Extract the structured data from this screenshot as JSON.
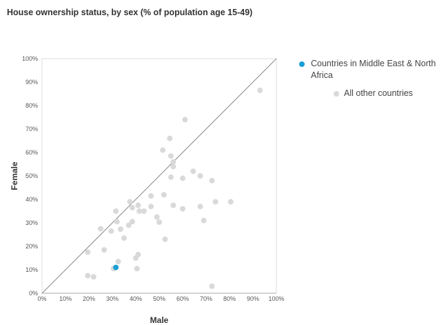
{
  "chart_data": {
    "type": "scatter",
    "title": "House ownership status, by sex (% of population age 15-49)",
    "xlabel": "Male",
    "ylabel": "Female",
    "xlim": [
      0,
      100
    ],
    "ylim": [
      0,
      100
    ],
    "x_ticks": [
      "0%",
      "10%",
      "20%",
      "30%",
      "40%",
      "50%",
      "60%",
      "70%",
      "80%",
      "90%",
      "100%"
    ],
    "y_ticks": [
      "0%",
      "10%",
      "20%",
      "30%",
      "40%",
      "50%",
      "60%",
      "70%",
      "80%",
      "90%",
      "100%"
    ],
    "reference_line": "y = x",
    "grid": false,
    "legend_position": "top-right",
    "series": [
      {
        "name": "Countries in Middle East & North Africa",
        "color": "#1a9fd4",
        "points": [
          [
            31.5,
            11
          ]
        ]
      },
      {
        "name": "All other countries",
        "color": "#d9d9d9",
        "points": [
          [
            93,
            86.5
          ],
          [
            61,
            74
          ],
          [
            54.5,
            66
          ],
          [
            51.5,
            61
          ],
          [
            55,
            58.5
          ],
          [
            56,
            56
          ],
          [
            56,
            54
          ],
          [
            64.5,
            52
          ],
          [
            67.5,
            50
          ],
          [
            55,
            49.5
          ],
          [
            60,
            49
          ],
          [
            72.5,
            48
          ],
          [
            52,
            42
          ],
          [
            46.5,
            41.5
          ],
          [
            37.5,
            39
          ],
          [
            74,
            39
          ],
          [
            80.5,
            39
          ],
          [
            56,
            37.5
          ],
          [
            41,
            37.5
          ],
          [
            67.5,
            37
          ],
          [
            46.5,
            37
          ],
          [
            38.5,
            36.5
          ],
          [
            60,
            36
          ],
          [
            31.5,
            35
          ],
          [
            41.5,
            35
          ],
          [
            43.5,
            35
          ],
          [
            49,
            32.5
          ],
          [
            69,
            31
          ],
          [
            32,
            30.5
          ],
          [
            50,
            30.3
          ],
          [
            38.5,
            30.5
          ],
          [
            37,
            29
          ],
          [
            25,
            27.5
          ],
          [
            33.5,
            27.3
          ],
          [
            29.5,
            26.5
          ],
          [
            35,
            23.5
          ],
          [
            52.5,
            23
          ],
          [
            26.5,
            18.5
          ],
          [
            19.5,
            17.5
          ],
          [
            41,
            16.5
          ],
          [
            40,
            15
          ],
          [
            32.5,
            13.5
          ],
          [
            30.5,
            10.5
          ],
          [
            40.5,
            10.5
          ],
          [
            19.5,
            7.5
          ],
          [
            22,
            7
          ],
          [
            72.5,
            3
          ]
        ]
      }
    ]
  }
}
